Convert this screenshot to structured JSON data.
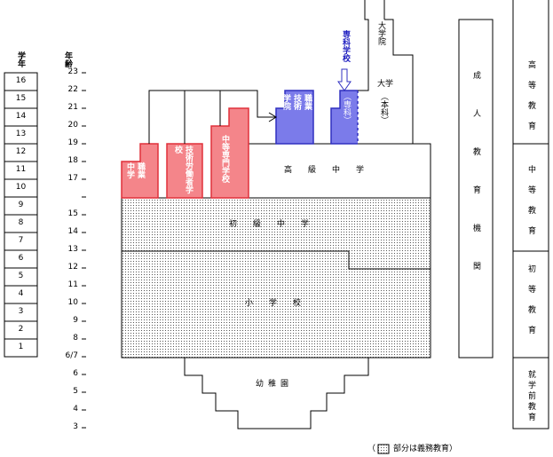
{
  "grade_column": {
    "header": "学年",
    "grades": [
      "16",
      "15",
      "14",
      "13",
      "12",
      "11",
      "10",
      "9",
      "8",
      "7",
      "6",
      "5",
      "4",
      "3",
      "2",
      "1"
    ]
  },
  "age_column": {
    "header": "年齢",
    "ages": [
      "23",
      "22",
      "21",
      "20",
      "19",
      "18",
      "17",
      null,
      "15",
      "14",
      "13",
      "12",
      "11",
      "10",
      "9",
      "8",
      "6/7",
      "6",
      "5",
      "4",
      "3"
    ]
  },
  "schools": {
    "vocational_middle": "職業中学",
    "skilled_worker": "技術労働者学校",
    "secondary_specialized": "中等専門学校",
    "vocational_college": "職業技術学院",
    "junior_college": "専科学校",
    "junior_college_course": "（専科）",
    "graduate": "大学院",
    "university": "大学",
    "university_course": "（本科）",
    "senior_middle": "高級中学",
    "junior_middle": "初級中学",
    "primary": "小学校",
    "kindergarten": "幼稚園",
    "adult": "成人教育機関"
  },
  "stages": {
    "higher": "高等教育",
    "secondary": "中等教育",
    "primary": "初等教育",
    "preschool": "就学前教育"
  },
  "legend": {
    "open": "（",
    "text": "部分は義務教育）"
  }
}
